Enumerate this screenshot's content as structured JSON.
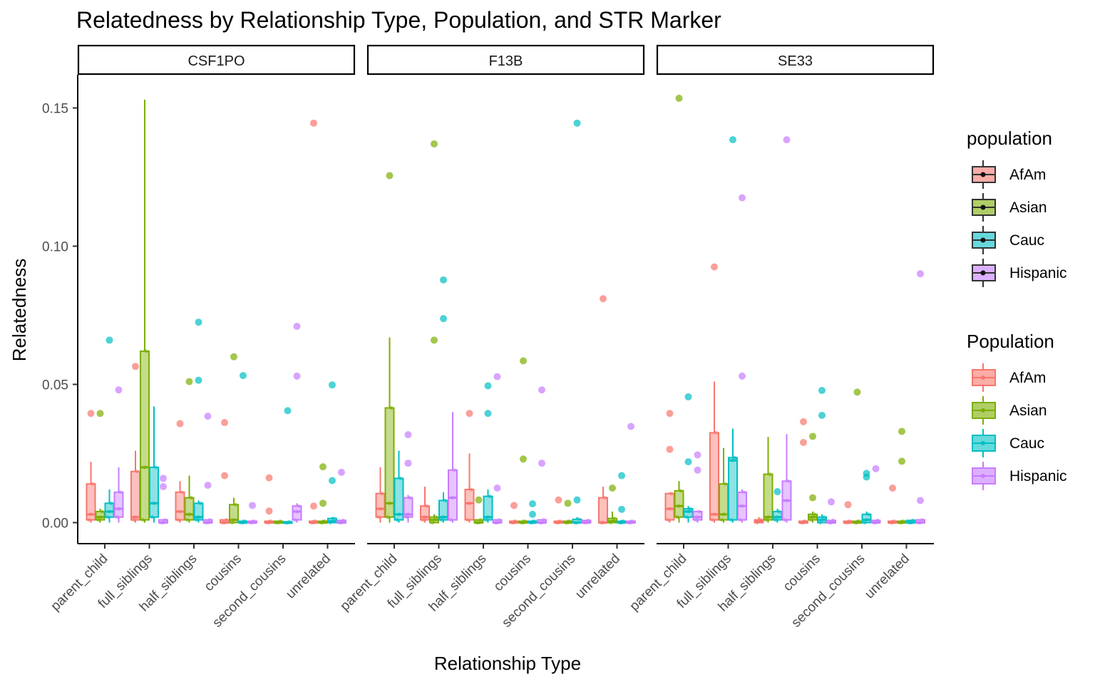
{
  "chart_data": {
    "type": "box",
    "title": "Relatedness by Relationship Type, Population, and STR Marker",
    "xlabel": "Relationship Type",
    "ylabel": "Relatedness",
    "ylim": [
      -0.007,
      0.162
    ],
    "yticks": [
      0.0,
      0.05,
      0.1,
      0.15
    ],
    "ytick_labels": [
      "0.00",
      "0.05",
      "0.10",
      "0.15"
    ],
    "categories": [
      "parent_child",
      "full_siblings",
      "half_siblings",
      "cousins",
      "second_cousins",
      "unrelated"
    ],
    "populations": [
      "AfAm",
      "Asian",
      "Cauc",
      "Hispanic"
    ],
    "colors": {
      "AfAm": "#F8766D",
      "Asian": "#7CAE00",
      "Cauc": "#00BFC4",
      "Hispanic": "#C77CFF"
    },
    "legend_fill": {
      "title": "population",
      "entries": [
        "AfAm",
        "Asian",
        "Cauc",
        "Hispanic"
      ]
    },
    "legend_color": {
      "title": "Population",
      "entries": [
        "AfAm",
        "Asian",
        "Cauc",
        "Hispanic"
      ]
    },
    "panels": [
      {
        "marker": "CSF1PO",
        "groups": {
          "parent_child": {
            "AfAm": {
              "q1": 0.001,
              "med": 0.003,
              "q3": 0.014,
              "lo": 0.0,
              "hi": 0.022,
              "out": [
                0.0395
              ]
            },
            "Asian": {
              "q1": 0.001,
              "med": 0.002,
              "q3": 0.004,
              "lo": 0.0,
              "hi": 0.005,
              "out": [
                0.0395
              ]
            },
            "Cauc": {
              "q1": 0.002,
              "med": 0.004,
              "q3": 0.007,
              "lo": 0.0,
              "hi": 0.012,
              "out": [
                0.066
              ]
            },
            "Hispanic": {
              "q1": 0.002,
              "med": 0.005,
              "q3": 0.011,
              "lo": 0.0,
              "hi": 0.02,
              "out": [
                0.048
              ]
            }
          },
          "full_siblings": {
            "AfAm": {
              "q1": 0.001,
              "med": 0.002,
              "q3": 0.0185,
              "lo": 0.0,
              "hi": 0.026,
              "out": [
                0.0565
              ]
            },
            "Asian": {
              "q1": 0.001,
              "med": 0.02,
              "q3": 0.062,
              "lo": 0.0,
              "hi": 0.153,
              "out": []
            },
            "Cauc": {
              "q1": 0.002,
              "med": 0.007,
              "q3": 0.02,
              "lo": 0.0,
              "hi": 0.042,
              "out": []
            },
            "Hispanic": {
              "q1": 0.0,
              "med": 0.0,
              "q3": 0.001,
              "lo": 0.0,
              "hi": 0.001,
              "out": [
                0.016,
                0.013
              ]
            }
          },
          "half_siblings": {
            "AfAm": {
              "q1": 0.001,
              "med": 0.004,
              "q3": 0.011,
              "lo": 0.0,
              "hi": 0.015,
              "out": [
                0.0358
              ]
            },
            "Asian": {
              "q1": 0.001,
              "med": 0.003,
              "q3": 0.009,
              "lo": 0.0,
              "hi": 0.017,
              "out": [
                0.051
              ]
            },
            "Cauc": {
              "q1": 0.001,
              "med": 0.002,
              "q3": 0.007,
              "lo": 0.0,
              "hi": 0.008,
              "out": [
                0.0725,
                0.0515
              ]
            },
            "Hispanic": {
              "q1": 0.0,
              "med": 0.0,
              "q3": 0.001,
              "lo": 0.0,
              "hi": 0.001,
              "out": [
                0.0385,
                0.0135
              ]
            }
          },
          "cousins": {
            "AfAm": {
              "q1": 0.0,
              "med": 0.0,
              "q3": 0.001,
              "lo": 0.0,
              "hi": 0.001,
              "out": [
                0.0362,
                0.017
              ]
            },
            "Asian": {
              "q1": 0.0,
              "med": 0.001,
              "q3": 0.0065,
              "lo": 0.0,
              "hi": 0.009,
              "out": [
                0.06
              ]
            },
            "Cauc": {
              "q1": 0.0,
              "med": 0.0,
              "q3": 0.0005,
              "lo": 0.0,
              "hi": 0.001,
              "out": [
                0.0532
              ]
            },
            "Hispanic": {
              "q1": 0.0,
              "med": 0.0,
              "q3": 0.0005,
              "lo": 0.0,
              "hi": 0.001,
              "out": [
                0.0062
              ]
            }
          },
          "second_cousins": {
            "AfAm": {
              "q1": 0.0,
              "med": 0.0,
              "q3": 0.0005,
              "lo": 0.0,
              "hi": 0.001,
              "out": [
                0.0162,
                0.0042
              ]
            },
            "Asian": {
              "q1": 0.0,
              "med": 0.0,
              "q3": 0.0005,
              "lo": 0.0,
              "hi": 0.0005,
              "out": []
            },
            "Cauc": {
              "q1": 0.0,
              "med": 0.0,
              "q3": 0.0003,
              "lo": 0.0,
              "hi": 0.0005,
              "out": [
                0.0405
              ]
            },
            "Hispanic": {
              "q1": 0.001,
              "med": 0.004,
              "q3": 0.006,
              "lo": 0.0,
              "hi": 0.007,
              "out": [
                0.071,
                0.053
              ]
            }
          },
          "unrelated": {
            "AfAm": {
              "q1": 0.0,
              "med": 0.0,
              "q3": 0.0005,
              "lo": 0.0,
              "hi": 0.001,
              "out": [
                0.1445,
                0.006
              ]
            },
            "Asian": {
              "q1": 0.0,
              "med": 0.0,
              "q3": 0.0005,
              "lo": 0.0,
              "hi": 0.001,
              "out": [
                0.0202,
                0.007
              ]
            },
            "Cauc": {
              "q1": 0.0,
              "med": 0.0005,
              "q3": 0.0015,
              "lo": 0.0,
              "hi": 0.002,
              "out": [
                0.0498,
                0.0152
              ]
            },
            "Hispanic": {
              "q1": 0.0,
              "med": 0.0,
              "q3": 0.0008,
              "lo": 0.0,
              "hi": 0.001,
              "out": [
                0.0182
              ]
            }
          }
        }
      },
      {
        "marker": "F13B",
        "groups": {
          "parent_child": {
            "AfAm": {
              "q1": 0.002,
              "med": 0.005,
              "q3": 0.0105,
              "lo": 0.0,
              "hi": 0.02,
              "out": []
            },
            "Asian": {
              "q1": 0.002,
              "med": 0.007,
              "q3": 0.0415,
              "lo": 0.0,
              "hi": 0.067,
              "out": [
                0.1255
              ]
            },
            "Cauc": {
              "q1": 0.001,
              "med": 0.003,
              "q3": 0.016,
              "lo": 0.0,
              "hi": 0.026,
              "out": []
            },
            "Hispanic": {
              "q1": 0.002,
              "med": 0.003,
              "q3": 0.009,
              "lo": 0.0,
              "hi": 0.01,
              "out": [
                0.0318,
                0.0215
              ]
            }
          },
          "full_siblings": {
            "AfAm": {
              "q1": 0.001,
              "med": 0.002,
              "q3": 0.006,
              "lo": 0.0,
              "hi": 0.013,
              "out": []
            },
            "Asian": {
              "q1": 0.0,
              "med": 0.001,
              "q3": 0.002,
              "lo": 0.0,
              "hi": 0.003,
              "out": [
                0.137,
                0.066
              ]
            },
            "Cauc": {
              "q1": 0.001,
              "med": 0.002,
              "q3": 0.008,
              "lo": 0.0,
              "hi": 0.011,
              "out": [
                0.0878,
                0.0738
              ]
            },
            "Hispanic": {
              "q1": 0.001,
              "med": 0.009,
              "q3": 0.019,
              "lo": 0.0,
              "hi": 0.04,
              "out": []
            }
          },
          "half_siblings": {
            "AfAm": {
              "q1": 0.001,
              "med": 0.007,
              "q3": 0.012,
              "lo": 0.0,
              "hi": 0.025,
              "out": [
                0.0395
              ]
            },
            "Asian": {
              "q1": 0.0,
              "med": 0.0,
              "q3": 0.001,
              "lo": 0.0,
              "hi": 0.001,
              "out": [
                0.0082
              ]
            },
            "Cauc": {
              "q1": 0.001,
              "med": 0.002,
              "q3": 0.0095,
              "lo": 0.0,
              "hi": 0.012,
              "out": [
                0.0495,
                0.0395
              ]
            },
            "Hispanic": {
              "q1": 0.0,
              "med": 0.0,
              "q3": 0.001,
              "lo": 0.0,
              "hi": 0.001,
              "out": [
                0.0528,
                0.0125
              ]
            }
          },
          "cousins": {
            "AfAm": {
              "q1": 0.0,
              "med": 0.0,
              "q3": 0.0005,
              "lo": 0.0,
              "hi": 0.001,
              "out": [
                0.0062
              ]
            },
            "Asian": {
              "q1": 0.0,
              "med": 0.0,
              "q3": 0.0005,
              "lo": 0.0,
              "hi": 0.001,
              "out": [
                0.0585,
                0.023
              ]
            },
            "Cauc": {
              "q1": 0.0,
              "med": 0.0,
              "q3": 0.0005,
              "lo": 0.0,
              "hi": 0.001,
              "out": [
                0.0068,
                0.003
              ]
            },
            "Hispanic": {
              "q1": 0.0,
              "med": 0.0,
              "q3": 0.001,
              "lo": 0.0,
              "hi": 0.001,
              "out": [
                0.048,
                0.0215
              ]
            }
          },
          "second_cousins": {
            "AfAm": {
              "q1": 0.0,
              "med": 0.0,
              "q3": 0.0005,
              "lo": 0.0,
              "hi": 0.001,
              "out": [
                0.0082
              ]
            },
            "Asian": {
              "q1": 0.0,
              "med": 0.0,
              "q3": 0.0005,
              "lo": 0.0,
              "hi": 0.001,
              "out": [
                0.007
              ]
            },
            "Cauc": {
              "q1": 0.0,
              "med": 0.0,
              "q3": 0.0012,
              "lo": 0.0,
              "hi": 0.002,
              "out": [
                0.1445,
                0.0082
              ]
            },
            "Hispanic": {
              "q1": 0.0,
              "med": 0.0,
              "q3": 0.0008,
              "lo": 0.0,
              "hi": 0.001,
              "out": []
            }
          },
          "unrelated": {
            "AfAm": {
              "q1": 0.0,
              "med": 0.0,
              "q3": 0.009,
              "lo": 0.0,
              "hi": 0.013,
              "out": [
                0.081
              ]
            },
            "Asian": {
              "q1": 0.0,
              "med": 0.0005,
              "q3": 0.0015,
              "lo": 0.0,
              "hi": 0.004,
              "out": [
                0.0125
              ]
            },
            "Cauc": {
              "q1": 0.0,
              "med": 0.0,
              "q3": 0.0005,
              "lo": 0.0,
              "hi": 0.001,
              "out": [
                0.017,
                0.0048
              ]
            },
            "Hispanic": {
              "q1": 0.0,
              "med": 0.0,
              "q3": 0.0005,
              "lo": 0.0,
              "hi": 0.001,
              "out": [
                0.0348
              ]
            }
          }
        }
      },
      {
        "marker": "SE33",
        "groups": {
          "parent_child": {
            "AfAm": {
              "q1": 0.001,
              "med": 0.005,
              "q3": 0.0105,
              "lo": 0.0,
              "hi": 0.011,
              "out": [
                0.0395,
                0.0265
              ]
            },
            "Asian": {
              "q1": 0.002,
              "med": 0.006,
              "q3": 0.0115,
              "lo": 0.0,
              "hi": 0.015,
              "out": [
                0.1535
              ]
            },
            "Cauc": {
              "q1": 0.002,
              "med": 0.004,
              "q3": 0.005,
              "lo": 0.0,
              "hi": 0.006,
              "out": [
                0.0455,
                0.022
              ]
            },
            "Hispanic": {
              "q1": 0.001,
              "med": 0.002,
              "q3": 0.004,
              "lo": 0.0,
              "hi": 0.004,
              "out": [
                0.0245,
                0.019
              ]
            }
          },
          "full_siblings": {
            "AfAm": {
              "q1": 0.001,
              "med": 0.003,
              "q3": 0.0325,
              "lo": 0.0,
              "hi": 0.051,
              "out": [
                0.0925
              ]
            },
            "Asian": {
              "q1": 0.001,
              "med": 0.003,
              "q3": 0.014,
              "lo": 0.0,
              "hi": 0.027,
              "out": []
            },
            "Cauc": {
              "q1": 0.001,
              "med": 0.0225,
              "q3": 0.0235,
              "lo": 0.0,
              "hi": 0.034,
              "out": [
                0.1385
              ]
            },
            "Hispanic": {
              "q1": 0.001,
              "med": 0.006,
              "q3": 0.011,
              "lo": 0.0,
              "hi": 0.012,
              "out": [
                0.1175,
                0.053
              ]
            }
          },
          "half_siblings": {
            "AfAm": {
              "q1": 0.0,
              "med": 0.0005,
              "q3": 0.001,
              "lo": 0.0,
              "hi": 0.002,
              "out": []
            },
            "Asian": {
              "q1": 0.001,
              "med": 0.002,
              "q3": 0.0175,
              "lo": 0.0,
              "hi": 0.031,
              "out": []
            },
            "Cauc": {
              "q1": 0.001,
              "med": 0.002,
              "q3": 0.004,
              "lo": 0.0,
              "hi": 0.005,
              "out": [
                0.0112
              ]
            },
            "Hispanic": {
              "q1": 0.001,
              "med": 0.008,
              "q3": 0.015,
              "lo": 0.0,
              "hi": 0.032,
              "out": [
                0.1385
              ]
            }
          },
          "cousins": {
            "AfAm": {
              "q1": 0.0,
              "med": 0.0,
              "q3": 0.0005,
              "lo": 0.0,
              "hi": 0.001,
              "out": [
                0.0365,
                0.029
              ]
            },
            "Asian": {
              "q1": 0.001,
              "med": 0.002,
              "q3": 0.003,
              "lo": 0.0,
              "hi": 0.004,
              "out": [
                0.0312,
                0.009
              ]
            },
            "Cauc": {
              "q1": 0.0,
              "med": 0.001,
              "q3": 0.002,
              "lo": 0.0,
              "hi": 0.003,
              "out": [
                0.0478,
                0.0388
              ]
            },
            "Hispanic": {
              "q1": 0.0,
              "med": 0.0,
              "q3": 0.0008,
              "lo": 0.0,
              "hi": 0.001,
              "out": [
                0.0075
              ]
            }
          },
          "second_cousins": {
            "AfAm": {
              "q1": 0.0,
              "med": 0.0,
              "q3": 0.0005,
              "lo": 0.0,
              "hi": 0.001,
              "out": [
                0.0065
              ]
            },
            "Asian": {
              "q1": 0.0,
              "med": 0.0,
              "q3": 0.0005,
              "lo": 0.0,
              "hi": 0.001,
              "out": [
                0.0472
              ]
            },
            "Cauc": {
              "q1": 0.0,
              "med": 0.001,
              "q3": 0.003,
              "lo": 0.0,
              "hi": 0.004,
              "out": [
                0.0178,
                0.0165
              ]
            },
            "Hispanic": {
              "q1": 0.0,
              "med": 0.0,
              "q3": 0.0008,
              "lo": 0.0,
              "hi": 0.001,
              "out": [
                0.0195
              ]
            }
          },
          "unrelated": {
            "AfAm": {
              "q1": 0.0,
              "med": 0.0,
              "q3": 0.0005,
              "lo": 0.0,
              "hi": 0.001,
              "out": [
                0.0125
              ]
            },
            "Asian": {
              "q1": 0.0,
              "med": 0.0,
              "q3": 0.0005,
              "lo": 0.0,
              "hi": 0.001,
              "out": [
                0.033,
                0.0222
              ]
            },
            "Cauc": {
              "q1": 0.0,
              "med": 0.0,
              "q3": 0.0008,
              "lo": 0.0,
              "hi": 0.001,
              "out": []
            },
            "Hispanic": {
              "q1": 0.0,
              "med": 0.0,
              "q3": 0.001,
              "lo": 0.0,
              "hi": 0.001,
              "out": [
                0.09,
                0.008
              ]
            }
          }
        }
      }
    ]
  }
}
